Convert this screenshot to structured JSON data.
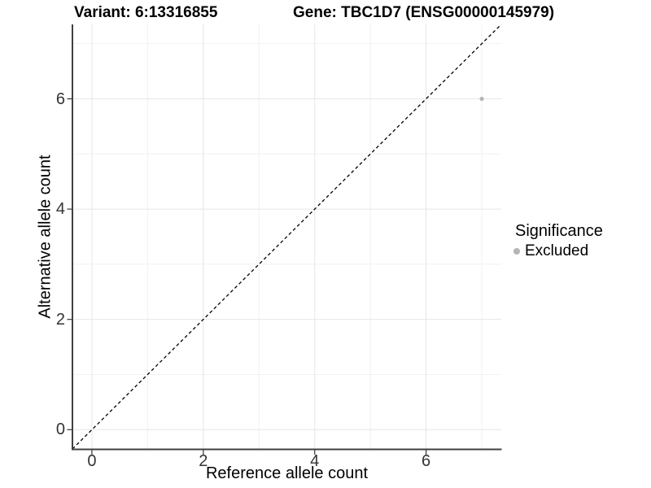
{
  "titles": {
    "left": "Variant: 6:13316855",
    "right": "Gene: TBC1D7 (ENSG00000145979)"
  },
  "axes": {
    "xlabel": "Reference allele count",
    "ylabel": "Alternative allele count"
  },
  "legend": {
    "title": "Significance",
    "position": "right",
    "entries": [
      {
        "label": "Excluded",
        "color": "#b5b5b5"
      }
    ]
  },
  "chart_data": {
    "type": "scatter",
    "title": "Variant: 6:13316855   Gene: TBC1D7 (ENSG00000145979)",
    "xlabel": "Reference allele count",
    "ylabel": "Alternative allele count",
    "xlim": [
      -0.35,
      7.35
    ],
    "ylim": [
      -0.35,
      7.35
    ],
    "x_major_ticks": [
      0,
      2,
      4,
      6
    ],
    "y_major_ticks": [
      0,
      2,
      4,
      6
    ],
    "x_minor_ticks": [
      1,
      3,
      5,
      7
    ],
    "y_minor_ticks": [
      1,
      3,
      5,
      7
    ],
    "grid": true,
    "legend_position": "right",
    "series": [
      {
        "name": "Excluded",
        "color": "#b5b5b5",
        "points": [
          {
            "x": 7,
            "y": 6
          }
        ]
      }
    ],
    "reference_line": {
      "type": "identity",
      "style": "dashed",
      "from": [
        -0.35,
        -0.35
      ],
      "to": [
        7.35,
        7.35
      ],
      "color": "#000000"
    },
    "colors": {
      "background": "#ffffff",
      "grid_major": "#e6e6e6",
      "grid_minor": "#f1f1f1",
      "axis_line": "#404040",
      "tick_mark": "#333333",
      "point": "#b5b5b5",
      "dashed_line": "#000000"
    }
  }
}
